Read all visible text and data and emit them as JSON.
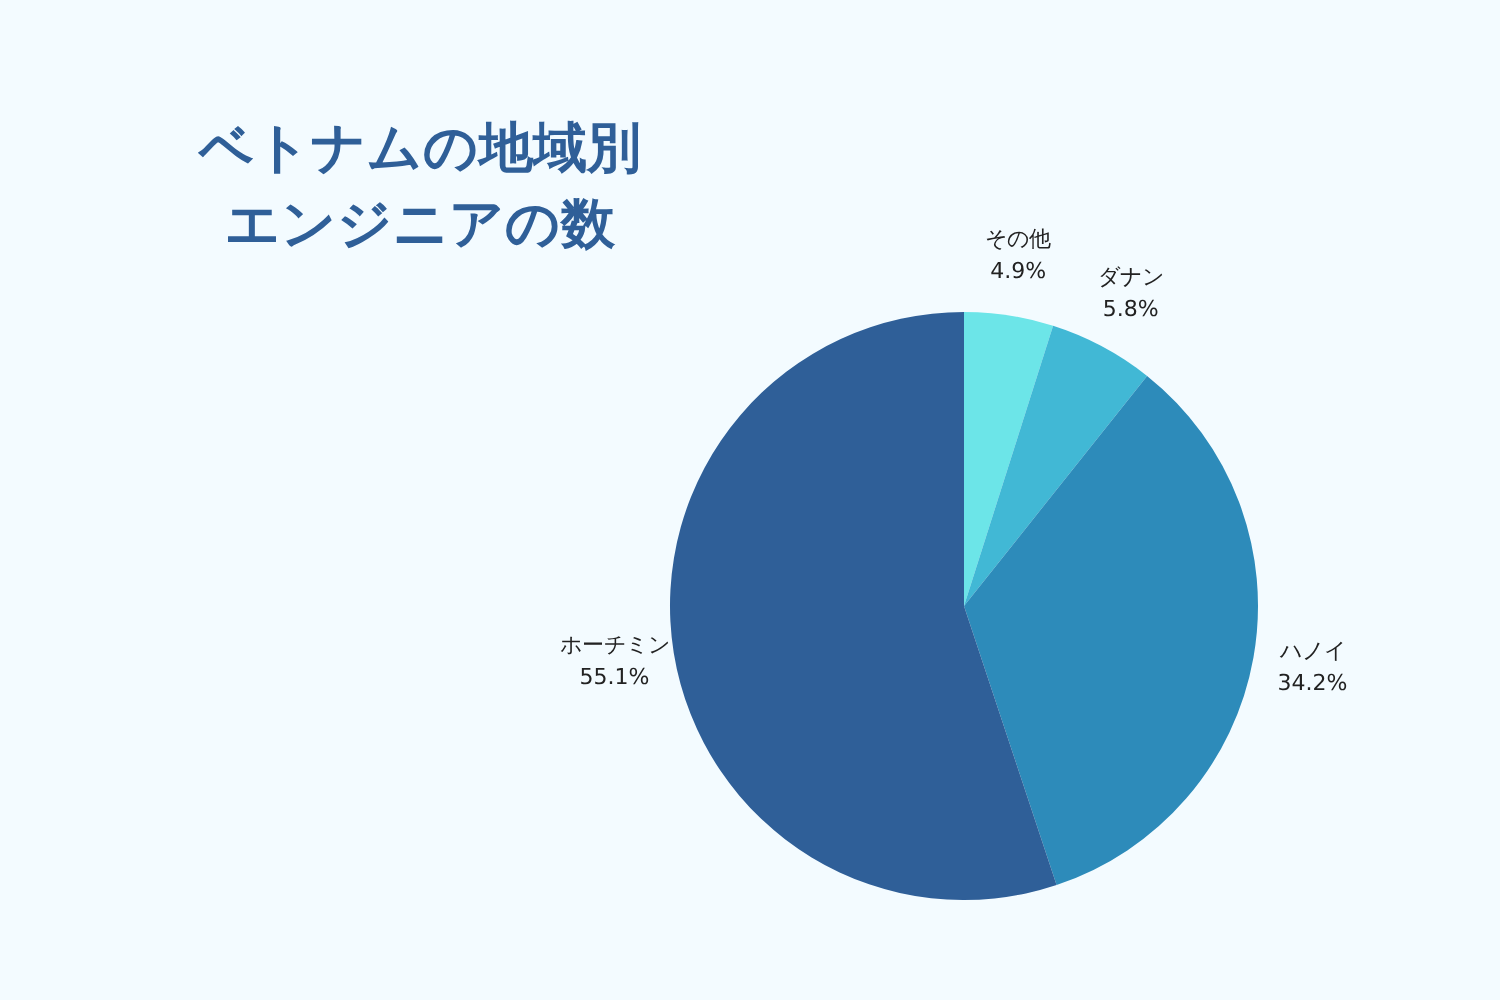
{
  "chart_data": {
    "type": "pie",
    "title": "ベトナムの地域別エンジニアの数",
    "categories": [
      "その他",
      "ダナン",
      "ハノイ",
      "ホーチミン"
    ],
    "values": [
      4.9,
      5.8,
      34.2,
      55.1
    ],
    "value_labels": [
      "4.9%",
      "5.8%",
      "34.2%",
      "55.1%"
    ],
    "colors": [
      "#6ce5e8",
      "#41b8d5",
      "#2d8bba",
      "#2f5f98"
    ]
  }
}
